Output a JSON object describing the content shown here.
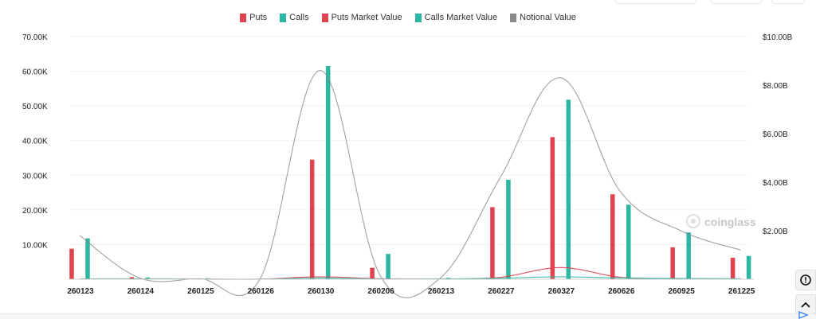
{
  "legend": [
    {
      "label": "Puts",
      "color": "#e0434f"
    },
    {
      "label": "Calls",
      "color": "#2db6a1"
    },
    {
      "label": "Puts Market Value",
      "color": "#e0434f"
    },
    {
      "label": "Calls Market Value",
      "color": "#2db6a1"
    },
    {
      "label": "Notional Value",
      "color": "#8a8a8a"
    }
  ],
  "watermark": "coinglass",
  "chart_data": {
    "type": "bar",
    "categories": [
      "260123",
      "260124",
      "260125",
      "260126",
      "260130",
      "260206",
      "260213",
      "260227",
      "260327",
      "260626",
      "260925",
      "261225"
    ],
    "y_left": {
      "ticks": [
        "10.00K",
        "20.00K",
        "30.00K",
        "40.00K",
        "50.00K",
        "60.00K",
        "70.00K"
      ],
      "tick_values": [
        10000,
        20000,
        30000,
        40000,
        50000,
        60000,
        70000
      ],
      "ylim": [
        0,
        70000
      ]
    },
    "y_right": {
      "ticks": [
        "$2.00B",
        "$4.00B",
        "$6.00B",
        "$8.00B",
        "$10.00B"
      ],
      "tick_values": [
        2000000000,
        4000000000,
        6000000000,
        8000000000,
        10000000000
      ],
      "ylim": [
        0,
        10000000000
      ]
    },
    "grid": true,
    "legend_position": "top",
    "series": [
      {
        "name": "Puts",
        "kind": "bar",
        "axis": "left",
        "color": "#e0434f",
        "values": [
          8800,
          600,
          0,
          0,
          34500,
          3300,
          0,
          20800,
          41000,
          24500,
          9200,
          6200
        ]
      },
      {
        "name": "Calls",
        "kind": "bar",
        "axis": "left",
        "color": "#2db6a1",
        "values": [
          11800,
          500,
          300,
          0,
          61500,
          7300,
          400,
          28700,
          51800,
          21500,
          13500,
          6700
        ]
      },
      {
        "name": "Puts Market Value",
        "kind": "line",
        "axis": "right",
        "color": "#e0434f",
        "values": [
          10000000,
          10000000,
          5000000,
          5000000,
          100000000,
          20000000,
          10000000,
          80000000,
          480000000,
          80000000,
          20000000,
          10000000
        ]
      },
      {
        "name": "Calls Market Value",
        "kind": "line",
        "axis": "right",
        "color": "#2db6a1",
        "values": [
          10000000,
          10000000,
          5000000,
          5000000,
          50000000,
          10000000,
          10000000,
          40000000,
          100000000,
          50000000,
          30000000,
          20000000
        ]
      },
      {
        "name": "Notional Value",
        "kind": "line",
        "axis": "right",
        "color": "#8a8a8a",
        "values": [
          1800000000,
          50000000,
          20000000,
          10000000,
          8600000000,
          150000000,
          50000000,
          4200000000,
          8300000000,
          3600000000,
          2000000000,
          1200000000
        ]
      }
    ]
  }
}
